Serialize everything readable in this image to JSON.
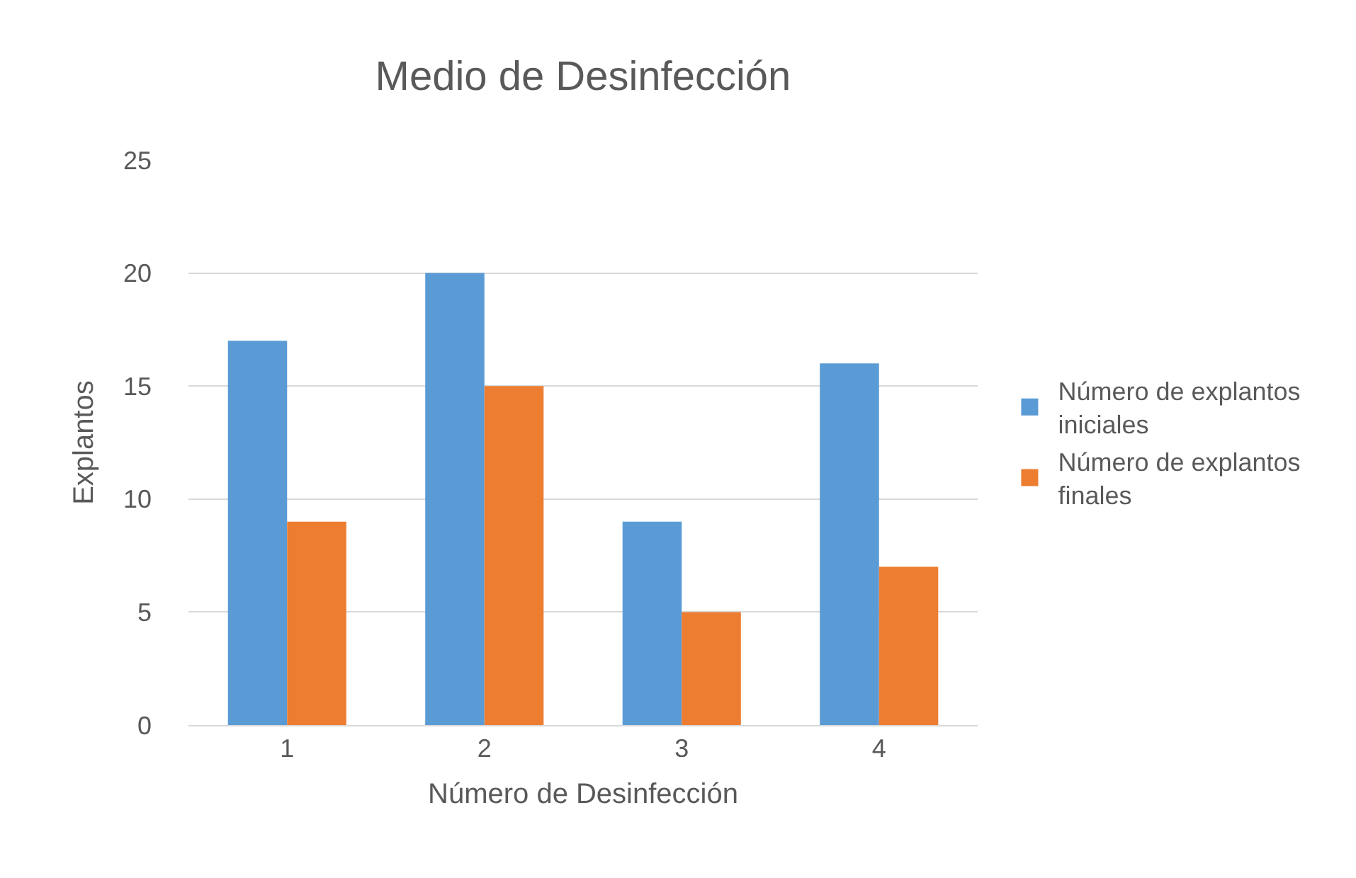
{
  "chart_data": {
    "type": "bar",
    "title": "Medio de Desinfección",
    "xlabel": "Número de Desinfección",
    "ylabel": "Explantos",
    "categories": [
      "1",
      "2",
      "3",
      "4"
    ],
    "series": [
      {
        "name": "Número de explantos iniciales",
        "color": "#5b9bd5",
        "values": [
          17,
          20,
          9,
          16
        ]
      },
      {
        "name": "Número de explantos finales",
        "color": "#ed7d31",
        "values": [
          9,
          15,
          5,
          7
        ]
      }
    ],
    "ylim": [
      0,
      25
    ],
    "yticks": [
      0,
      5,
      10,
      15,
      20,
      25
    ],
    "grid": "y",
    "legend": "right"
  }
}
